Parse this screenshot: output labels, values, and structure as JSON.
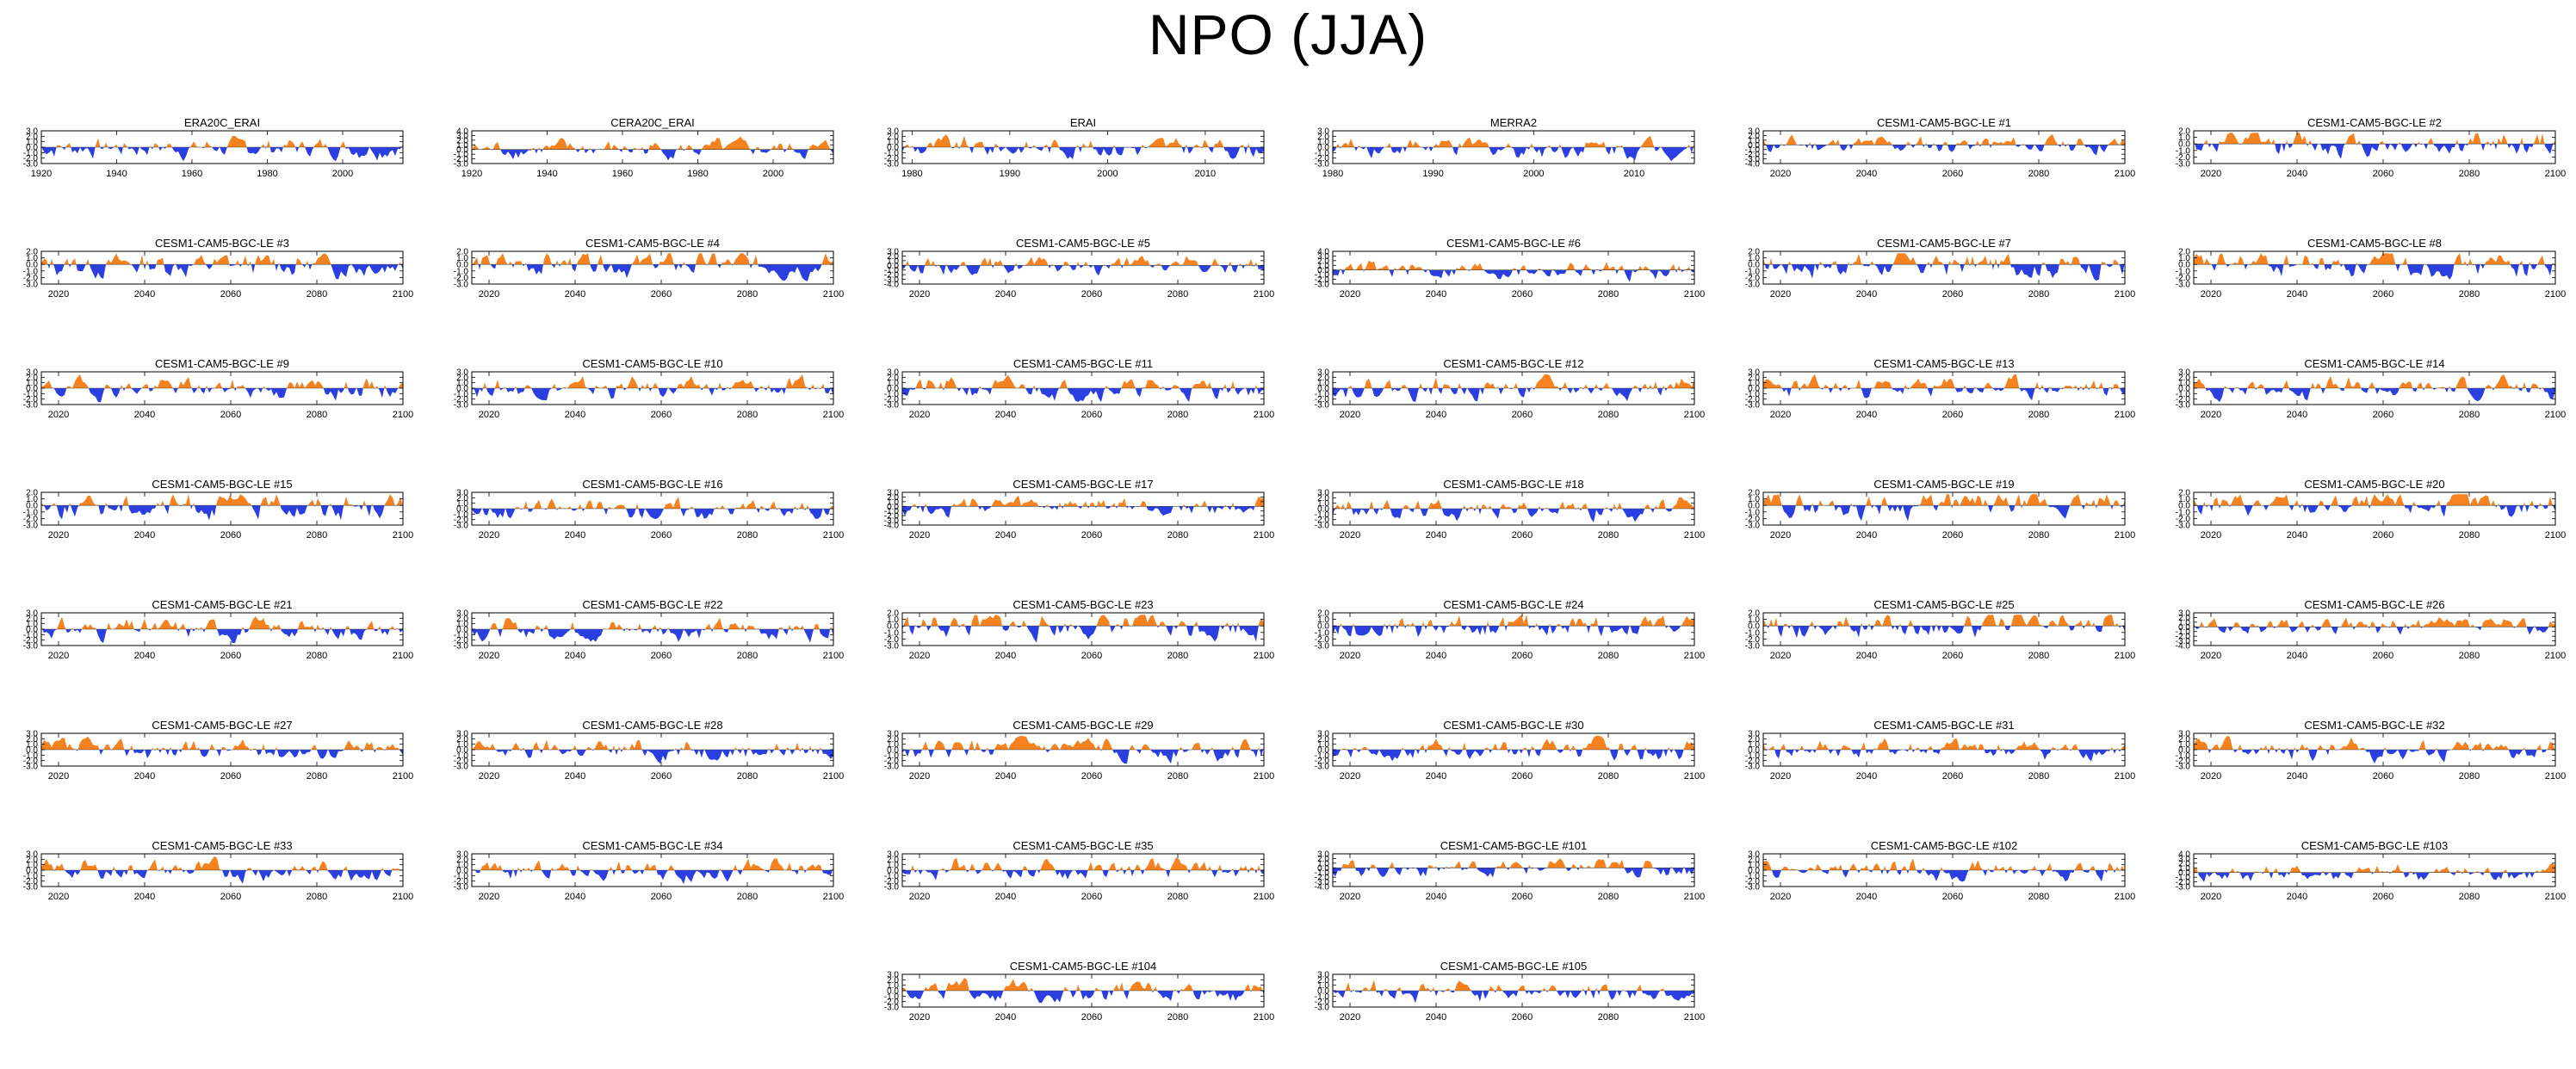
{
  "title": "NPO (JJA)",
  "colors": {
    "positive": "#f5821f",
    "negative": "#2b3fe0",
    "axis": "#000000"
  },
  "chart_data": [
    {
      "type": "area",
      "title": "ERA20C_ERAI",
      "xlim": [
        1920,
        2016
      ],
      "xticks": [
        "1920",
        "1940",
        "1960",
        "1980",
        "2000"
      ],
      "ylim": [
        -3,
        3
      ],
      "yticks": [
        "3.0",
        "2.0",
        "1.0",
        "0.0",
        "-1.0",
        "-2.0",
        "-3.0"
      ]
    },
    {
      "type": "area",
      "title": "CERA20C_ERAI",
      "xlim": [
        1920,
        2016
      ],
      "xticks": [
        "1920",
        "1940",
        "1960",
        "1980",
        "2000"
      ],
      "ylim": [
        -3,
        4
      ],
      "yticks": [
        "4.0",
        "3.0",
        "2.0",
        "1.0",
        "0.0",
        "-1.0",
        "-2.0",
        "-3.0"
      ]
    },
    {
      "type": "area",
      "title": "ERAI",
      "xlim": [
        1979,
        2016
      ],
      "xticks": [
        "1980",
        "1990",
        "2000",
        "2010"
      ],
      "ylim": [
        -3,
        3
      ],
      "yticks": [
        "3.0",
        "2.0",
        "1.0",
        "0.0",
        "-1.0",
        "-2.0",
        "-3.0"
      ]
    },
    {
      "type": "area",
      "title": "MERRA2",
      "xlim": [
        1980,
        2016
      ],
      "xticks": [
        "1980",
        "1990",
        "2000",
        "2010"
      ],
      "ylim": [
        -3,
        3
      ],
      "yticks": [
        "3.0",
        "2.0",
        "1.0",
        "0.0",
        "-1.0",
        "-2.0",
        "-3.0"
      ]
    },
    {
      "type": "area",
      "title": "CESM1-CAM5-BGC-LE #1",
      "xlim": [
        2016,
        2100
      ],
      "xticks": [
        "2020",
        "2040",
        "2060",
        "2080",
        "2100"
      ],
      "ylim": [
        -4,
        3
      ],
      "yticks": [
        "3.0",
        "2.0",
        "1.0",
        "0.0",
        "-1.0",
        "-2.0",
        "-3.0",
        "-4.0"
      ]
    },
    {
      "type": "area",
      "title": "CESM1-CAM5-BGC-LE #2",
      "xlim": [
        2016,
        2100
      ],
      "xticks": [
        "2020",
        "2040",
        "2060",
        "2080",
        "2100"
      ],
      "ylim": [
        -3,
        2
      ],
      "yticks": [
        "2.0",
        "1.0",
        "0.0",
        "-1.0",
        "-2.0",
        "-3.0"
      ]
    },
    {
      "type": "area",
      "title": "CESM1-CAM5-BGC-LE #3",
      "xlim": [
        2016,
        2100
      ],
      "xticks": [
        "2020",
        "2040",
        "2060",
        "2080",
        "2100"
      ],
      "ylim": [
        -3,
        2
      ],
      "yticks": [
        "2.0",
        "1.0",
        "0.0",
        "-1.0",
        "-2.0",
        "-3.0"
      ]
    },
    {
      "type": "area",
      "title": "CESM1-CAM5-BGC-LE #4",
      "xlim": [
        2016,
        2100
      ],
      "xticks": [
        "2020",
        "2040",
        "2060",
        "2080",
        "2100"
      ],
      "ylim": [
        -3,
        2
      ],
      "yticks": [
        "2.0",
        "1.0",
        "0.0",
        "-1.0",
        "-2.0",
        "-3.0"
      ]
    },
    {
      "type": "area",
      "title": "CESM1-CAM5-BGC-LE #5",
      "xlim": [
        2016,
        2100
      ],
      "xticks": [
        "2020",
        "2040",
        "2060",
        "2080",
        "2100"
      ],
      "ylim": [
        -4,
        3
      ],
      "yticks": [
        "3.0",
        "2.0",
        "1.0",
        "0.0",
        "-1.0",
        "-2.0",
        "-3.0",
        "-4.0"
      ]
    },
    {
      "type": "area",
      "title": "CESM1-CAM5-BGC-LE #6",
      "xlim": [
        2016,
        2100
      ],
      "xticks": [
        "2020",
        "2040",
        "2060",
        "2080",
        "2100"
      ],
      "ylim": [
        -3,
        4
      ],
      "yticks": [
        "4.0",
        "3.0",
        "2.0",
        "1.0",
        "0.0",
        "-1.0",
        "-2.0",
        "-3.0"
      ]
    },
    {
      "type": "area",
      "title": "CESM1-CAM5-BGC-LE #7",
      "xlim": [
        2016,
        2100
      ],
      "xticks": [
        "2020",
        "2040",
        "2060",
        "2080",
        "2100"
      ],
      "ylim": [
        -3,
        2
      ],
      "yticks": [
        "2.0",
        "1.0",
        "0.0",
        "-1.0",
        "-2.0",
        "-3.0"
      ]
    },
    {
      "type": "area",
      "title": "CESM1-CAM5-BGC-LE #8",
      "xlim": [
        2016,
        2100
      ],
      "xticks": [
        "2020",
        "2040",
        "2060",
        "2080",
        "2100"
      ],
      "ylim": [
        -3,
        2
      ],
      "yticks": [
        "2.0",
        "1.0",
        "0.0",
        "-1.0",
        "-2.0",
        "-3.0"
      ]
    },
    {
      "type": "area",
      "title": "CESM1-CAM5-BGC-LE #9",
      "xlim": [
        2016,
        2100
      ],
      "xticks": [
        "2020",
        "2040",
        "2060",
        "2080",
        "2100"
      ],
      "ylim": [
        -3,
        3
      ],
      "yticks": [
        "3.0",
        "2.0",
        "1.0",
        "0.0",
        "-1.0",
        "-2.0",
        "-3.0"
      ]
    },
    {
      "type": "area",
      "title": "CESM1-CAM5-BGC-LE #10",
      "xlim": [
        2016,
        2100
      ],
      "xticks": [
        "2020",
        "2040",
        "2060",
        "2080",
        "2100"
      ],
      "ylim": [
        -3,
        3
      ],
      "yticks": [
        "3.0",
        "2.0",
        "1.0",
        "0.0",
        "-1.0",
        "-2.0",
        "-3.0"
      ]
    },
    {
      "type": "area",
      "title": "CESM1-CAM5-BGC-LE #11",
      "xlim": [
        2016,
        2100
      ],
      "xticks": [
        "2020",
        "2040",
        "2060",
        "2080",
        "2100"
      ],
      "ylim": [
        -3,
        3
      ],
      "yticks": [
        "3.0",
        "2.0",
        "1.0",
        "0.0",
        "-1.0",
        "-2.0",
        "-3.0"
      ]
    },
    {
      "type": "area",
      "title": "CESM1-CAM5-BGC-LE #12",
      "xlim": [
        2016,
        2100
      ],
      "xticks": [
        "2020",
        "2040",
        "2060",
        "2080",
        "2100"
      ],
      "ylim": [
        -3,
        3
      ],
      "yticks": [
        "3.0",
        "2.0",
        "1.0",
        "0.0",
        "-1.0",
        "-2.0",
        "-3.0"
      ]
    },
    {
      "type": "area",
      "title": "CESM1-CAM5-BGC-LE #13",
      "xlim": [
        2016,
        2100
      ],
      "xticks": [
        "2020",
        "2040",
        "2060",
        "2080",
        "2100"
      ],
      "ylim": [
        -3,
        3
      ],
      "yticks": [
        "3.0",
        "2.0",
        "1.0",
        "0.0",
        "-1.0",
        "-2.0",
        "-3.0"
      ]
    },
    {
      "type": "area",
      "title": "CESM1-CAM5-BGC-LE #14",
      "xlim": [
        2016,
        2100
      ],
      "xticks": [
        "2020",
        "2040",
        "2060",
        "2080",
        "2100"
      ],
      "ylim": [
        -3,
        3
      ],
      "yticks": [
        "3.0",
        "2.0",
        "1.0",
        "0.0",
        "-1.0",
        "-2.0",
        "-3.0"
      ]
    },
    {
      "type": "area",
      "title": "CESM1-CAM5-BGC-LE #15",
      "xlim": [
        2016,
        2100
      ],
      "xticks": [
        "2020",
        "2040",
        "2060",
        "2080",
        "2100"
      ],
      "ylim": [
        -3,
        2
      ],
      "yticks": [
        "2.0",
        "1.0",
        "0.0",
        "-1.0",
        "-2.0",
        "-3.0"
      ]
    },
    {
      "type": "area",
      "title": "CESM1-CAM5-BGC-LE #16",
      "xlim": [
        2016,
        2100
      ],
      "xticks": [
        "2020",
        "2040",
        "2060",
        "2080",
        "2100"
      ],
      "ylim": [
        -3,
        3
      ],
      "yticks": [
        "3.0",
        "2.0",
        "1.0",
        "0.0",
        "-1.0",
        "-2.0",
        "-3.0"
      ]
    },
    {
      "type": "area",
      "title": "CESM1-CAM5-BGC-LE #17",
      "xlim": [
        2016,
        2100
      ],
      "xticks": [
        "2020",
        "2040",
        "2060",
        "2080",
        "2100"
      ],
      "ylim": [
        -4,
        3
      ],
      "yticks": [
        "3.0",
        "2.0",
        "1.0",
        "0.0",
        "-1.0",
        "-2.0",
        "-3.0",
        "-4.0"
      ]
    },
    {
      "type": "area",
      "title": "CESM1-CAM5-BGC-LE #18",
      "xlim": [
        2016,
        2100
      ],
      "xticks": [
        "2020",
        "2040",
        "2060",
        "2080",
        "2100"
      ],
      "ylim": [
        -3,
        3
      ],
      "yticks": [
        "3.0",
        "2.0",
        "1.0",
        "0.0",
        "-1.0",
        "-2.0",
        "-3.0"
      ]
    },
    {
      "type": "area",
      "title": "CESM1-CAM5-BGC-LE #19",
      "xlim": [
        2016,
        2100
      ],
      "xticks": [
        "2020",
        "2040",
        "2060",
        "2080",
        "2100"
      ],
      "ylim": [
        -3,
        2
      ],
      "yticks": [
        "2.0",
        "1.0",
        "0.0",
        "-1.0",
        "-2.0",
        "-3.0"
      ]
    },
    {
      "type": "area",
      "title": "CESM1-CAM5-BGC-LE #20",
      "xlim": [
        2016,
        2100
      ],
      "xticks": [
        "2020",
        "2040",
        "2060",
        "2080",
        "2100"
      ],
      "ylim": [
        -3,
        2
      ],
      "yticks": [
        "2.0",
        "1.0",
        "0.0",
        "-1.0",
        "-2.0",
        "-3.0"
      ]
    },
    {
      "type": "area",
      "title": "CESM1-CAM5-BGC-LE #21",
      "xlim": [
        2016,
        2100
      ],
      "xticks": [
        "2020",
        "2040",
        "2060",
        "2080",
        "2100"
      ],
      "ylim": [
        -3,
        3
      ],
      "yticks": [
        "3.0",
        "2.0",
        "1.0",
        "0.0",
        "-1.0",
        "-2.0",
        "-3.0"
      ]
    },
    {
      "type": "area",
      "title": "CESM1-CAM5-BGC-LE #22",
      "xlim": [
        2016,
        2100
      ],
      "xticks": [
        "2020",
        "2040",
        "2060",
        "2080",
        "2100"
      ],
      "ylim": [
        -3,
        3
      ],
      "yticks": [
        "3.0",
        "2.0",
        "1.0",
        "0.0",
        "-1.0",
        "-2.0",
        "-3.0"
      ]
    },
    {
      "type": "area",
      "title": "CESM1-CAM5-BGC-LE #23",
      "xlim": [
        2016,
        2100
      ],
      "xticks": [
        "2020",
        "2040",
        "2060",
        "2080",
        "2100"
      ],
      "ylim": [
        -3,
        2
      ],
      "yticks": [
        "2.0",
        "1.0",
        "0.0",
        "-1.0",
        "-2.0",
        "-3.0"
      ]
    },
    {
      "type": "area",
      "title": "CESM1-CAM5-BGC-LE #24",
      "xlim": [
        2016,
        2100
      ],
      "xticks": [
        "2020",
        "2040",
        "2060",
        "2080",
        "2100"
      ],
      "ylim": [
        -3,
        2
      ],
      "yticks": [
        "2.0",
        "1.0",
        "0.0",
        "-1.0",
        "-2.0",
        "-3.0"
      ]
    },
    {
      "type": "area",
      "title": "CESM1-CAM5-BGC-LE #25",
      "xlim": [
        2016,
        2100
      ],
      "xticks": [
        "2020",
        "2040",
        "2060",
        "2080",
        "2100"
      ],
      "ylim": [
        -3,
        2
      ],
      "yticks": [
        "2.0",
        "1.0",
        "0.0",
        "-1.0",
        "-2.0",
        "-3.0"
      ]
    },
    {
      "type": "area",
      "title": "CESM1-CAM5-BGC-LE #26",
      "xlim": [
        2016,
        2100
      ],
      "xticks": [
        "2020",
        "2040",
        "2060",
        "2080",
        "2100"
      ],
      "ylim": [
        -4,
        3
      ],
      "yticks": [
        "3.0",
        "2.0",
        "1.0",
        "0.0",
        "-1.0",
        "-2.0",
        "-3.0",
        "-4.0"
      ]
    },
    {
      "type": "area",
      "title": "CESM1-CAM5-BGC-LE #27",
      "xlim": [
        2016,
        2100
      ],
      "xticks": [
        "2020",
        "2040",
        "2060",
        "2080",
        "2100"
      ],
      "ylim": [
        -3,
        3
      ],
      "yticks": [
        "3.0",
        "2.0",
        "1.0",
        "0.0",
        "-1.0",
        "-2.0",
        "-3.0"
      ]
    },
    {
      "type": "area",
      "title": "CESM1-CAM5-BGC-LE #28",
      "xlim": [
        2016,
        2100
      ],
      "xticks": [
        "2020",
        "2040",
        "2060",
        "2080",
        "2100"
      ],
      "ylim": [
        -3,
        3
      ],
      "yticks": [
        "3.0",
        "2.0",
        "1.0",
        "0.0",
        "-1.0",
        "-2.0",
        "-3.0"
      ]
    },
    {
      "type": "area",
      "title": "CESM1-CAM5-BGC-LE #29",
      "xlim": [
        2016,
        2100
      ],
      "xticks": [
        "2020",
        "2040",
        "2060",
        "2080",
        "2100"
      ],
      "ylim": [
        -3,
        3
      ],
      "yticks": [
        "3.0",
        "2.0",
        "1.0",
        "0.0",
        "-1.0",
        "-2.0",
        "-3.0"
      ]
    },
    {
      "type": "area",
      "title": "CESM1-CAM5-BGC-LE #30",
      "xlim": [
        2016,
        2100
      ],
      "xticks": [
        "2020",
        "2040",
        "2060",
        "2080",
        "2100"
      ],
      "ylim": [
        -3,
        3
      ],
      "yticks": [
        "3.0",
        "2.0",
        "1.0",
        "0.0",
        "-1.0",
        "-2.0",
        "-3.0"
      ]
    },
    {
      "type": "area",
      "title": "CESM1-CAM5-BGC-LE #31",
      "xlim": [
        2016,
        2100
      ],
      "xticks": [
        "2020",
        "2040",
        "2060",
        "2080",
        "2100"
      ],
      "ylim": [
        -3,
        3
      ],
      "yticks": [
        "3.0",
        "2.0",
        "1.0",
        "0.0",
        "-1.0",
        "-2.0",
        "-3.0"
      ]
    },
    {
      "type": "area",
      "title": "CESM1-CAM5-BGC-LE #32",
      "xlim": [
        2016,
        2100
      ],
      "xticks": [
        "2020",
        "2040",
        "2060",
        "2080",
        "2100"
      ],
      "ylim": [
        -3,
        3
      ],
      "yticks": [
        "3.0",
        "2.0",
        "1.0",
        "0.0",
        "-1.0",
        "-2.0",
        "-3.0"
      ]
    },
    {
      "type": "area",
      "title": "CESM1-CAM5-BGC-LE #33",
      "xlim": [
        2016,
        2100
      ],
      "xticks": [
        "2020",
        "2040",
        "2060",
        "2080",
        "2100"
      ],
      "ylim": [
        -3,
        3
      ],
      "yticks": [
        "3.0",
        "2.0",
        "1.0",
        "0.0",
        "-1.0",
        "-2.0",
        "-3.0"
      ]
    },
    {
      "type": "area",
      "title": "CESM1-CAM5-BGC-LE #34",
      "xlim": [
        2016,
        2100
      ],
      "xticks": [
        "2020",
        "2040",
        "2060",
        "2080",
        "2100"
      ],
      "ylim": [
        -3,
        3
      ],
      "yticks": [
        "3.0",
        "2.0",
        "1.0",
        "0.0",
        "-1.0",
        "-2.0",
        "-3.0"
      ]
    },
    {
      "type": "area",
      "title": "CESM1-CAM5-BGC-LE #35",
      "xlim": [
        2016,
        2100
      ],
      "xticks": [
        "2020",
        "2040",
        "2060",
        "2080",
        "2100"
      ],
      "ylim": [
        -3,
        3
      ],
      "yticks": [
        "3.0",
        "2.0",
        "1.0",
        "0.0",
        "-1.0",
        "-2.0",
        "-3.0"
      ]
    },
    {
      "type": "area",
      "title": "CESM1-CAM5-BGC-LE #101",
      "xlim": [
        2016,
        2100
      ],
      "xticks": [
        "2020",
        "2040",
        "2060",
        "2080",
        "2100"
      ],
      "ylim": [
        -4,
        3
      ],
      "yticks": [
        "3.0",
        "2.0",
        "1.0",
        "0.0",
        "-1.0",
        "-2.0",
        "-3.0",
        "-4.0"
      ]
    },
    {
      "type": "area",
      "title": "CESM1-CAM5-BGC-LE #102",
      "xlim": [
        2016,
        2100
      ],
      "xticks": [
        "2020",
        "2040",
        "2060",
        "2080",
        "2100"
      ],
      "ylim": [
        -3,
        3
      ],
      "yticks": [
        "3.0",
        "2.0",
        "1.0",
        "0.0",
        "-1.0",
        "-2.0",
        "-3.0"
      ]
    },
    {
      "type": "area",
      "title": "CESM1-CAM5-BGC-LE #103",
      "xlim": [
        2016,
        2100
      ],
      "xticks": [
        "2020",
        "2040",
        "2060",
        "2080",
        "2100"
      ],
      "ylim": [
        -3,
        4
      ],
      "yticks": [
        "4.0",
        "3.0",
        "2.0",
        "1.0",
        "0.0",
        "-1.0",
        "-2.0",
        "-3.0"
      ]
    },
    {
      "type": "area",
      "title": "CESM1-CAM5-BGC-LE #104",
      "xlim": [
        2016,
        2100
      ],
      "xticks": [
        "2020",
        "2040",
        "2060",
        "2080",
        "2100"
      ],
      "ylim": [
        -3,
        3
      ],
      "yticks": [
        "3.0",
        "2.0",
        "1.0",
        "0.0",
        "-1.0",
        "-2.0",
        "-3.0"
      ]
    },
    {
      "type": "area",
      "title": "CESM1-CAM5-BGC-LE #105",
      "xlim": [
        2016,
        2100
      ],
      "xticks": [
        "2020",
        "2040",
        "2060",
        "2080",
        "2100"
      ],
      "ylim": [
        -3,
        3
      ],
      "yticks": [
        "3.0",
        "2.0",
        "1.0",
        "0.0",
        "-1.0",
        "-2.0",
        "-3.0"
      ]
    }
  ]
}
